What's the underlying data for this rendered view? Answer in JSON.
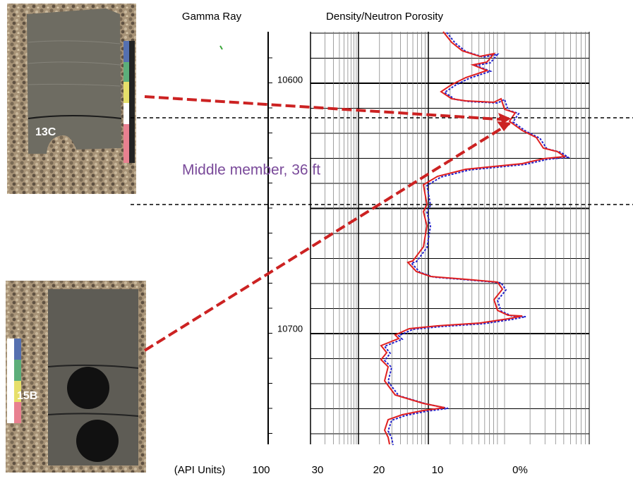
{
  "header": {
    "gamma_ray": "Gamma Ray",
    "porosity": "Density/Neutron Porosity"
  },
  "depths": [
    "10600",
    "10700"
  ],
  "cores": [
    "13C",
    "15B"
  ],
  "annotation": "Middle member, 36 ft",
  "axis": {
    "gamma_unit": "(API Units)",
    "gamma_max": "100",
    "porosity_ticks": [
      "30",
      "20",
      "10",
      "0%"
    ]
  }
}
